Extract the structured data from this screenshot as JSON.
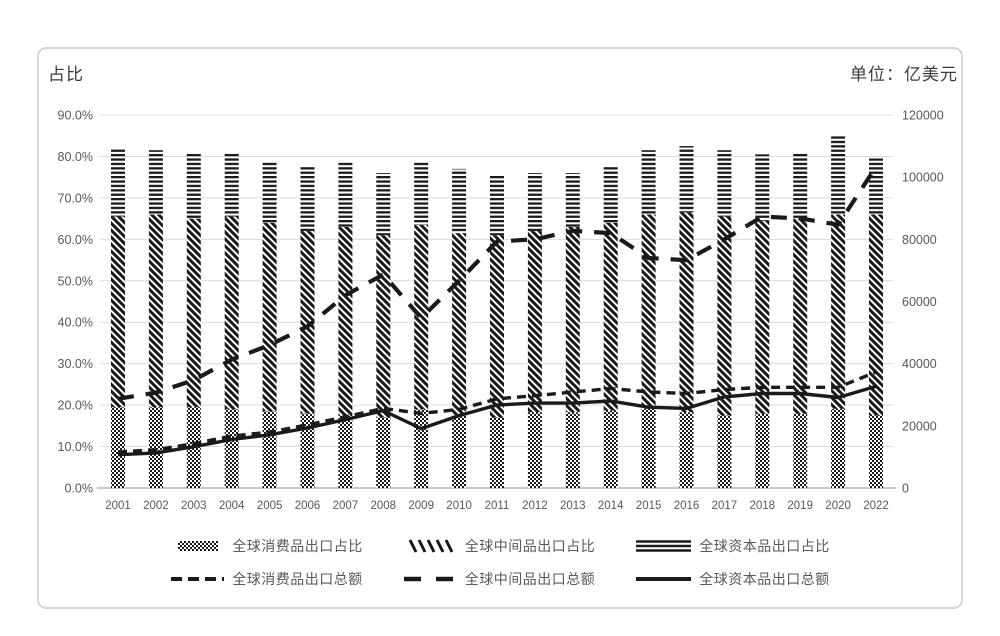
{
  "chart_data": {
    "type": "combo-stacked-bar-line",
    "left_axis": {
      "title": "占比",
      "unit": "%",
      "min": 0,
      "max": 90,
      "ticks": [
        "0.0%",
        "10.0%",
        "20.0%",
        "30.0%",
        "40.0%",
        "50.0%",
        "60.0%",
        "70.0%",
        "80.0%",
        "90.0%"
      ]
    },
    "right_axis": {
      "title": "单位：亿美元",
      "unit": "亿美元",
      "min": 0,
      "max": 120000,
      "ticks": [
        "0",
        "20000",
        "40000",
        "60000",
        "80000",
        "100000",
        "120000"
      ]
    },
    "categories": [
      "2001",
      "2002",
      "2003",
      "2004",
      "2005",
      "2006",
      "2007",
      "2008",
      "2009",
      "2010",
      "2011",
      "2012",
      "2013",
      "2014",
      "2015",
      "2016",
      "2017",
      "2018",
      "2019",
      "2020",
      "2022"
    ],
    "series_bars": [
      {
        "name": "全球消费品出口占比",
        "pattern": "crosshatch",
        "axis": "left",
        "unit": "%",
        "values": [
          19.5,
          19.5,
          19.5,
          19,
          18.5,
          18,
          17.5,
          17,
          19,
          17.5,
          17,
          18.3,
          18.3,
          18.7,
          19.1,
          18.3,
          17.5,
          17.9,
          17.9,
          19.1,
          17.5
        ]
      },
      {
        "name": "全球中间品出口占比",
        "pattern": "diagonal-stripes",
        "axis": "left",
        "unit": "%",
        "values": [
          46,
          46.5,
          45.5,
          46.5,
          45.5,
          44,
          45.5,
          44,
          44.5,
          44,
          44,
          43.7,
          44.7,
          45.3,
          46.9,
          48.2,
          48,
          46.6,
          47.1,
          46.9,
          48.5
        ]
      },
      {
        "name": "全球资本品出口占比",
        "pattern": "horizontal-stripes",
        "axis": "left",
        "unit": "%",
        "values": [
          16.5,
          15.5,
          16,
          15.5,
          14.5,
          15.5,
          15.5,
          15,
          15,
          15.5,
          14.5,
          14,
          13,
          13.5,
          15.5,
          16,
          16,
          16,
          16,
          19,
          13.5
        ]
      }
    ],
    "series_lines": [
      {
        "name": "全球消费品出口总额",
        "style": "dashed-short",
        "axis": "right",
        "unit": "亿美元",
        "values": [
          11600,
          12300,
          14300,
          16700,
          18000,
          20300,
          22900,
          25600,
          24000,
          25300,
          28700,
          29700,
          30900,
          32000,
          30900,
          30400,
          31700,
          32400,
          32400,
          32400,
          37300
        ]
      },
      {
        "name": "全球中间品出口总额",
        "style": "dashed-long",
        "axis": "right",
        "unit": "亿美元",
        "values": [
          28700,
          30700,
          34700,
          41300,
          46000,
          52000,
          62000,
          68700,
          54700,
          66700,
          79300,
          80000,
          82700,
          82000,
          74000,
          73300,
          80000,
          87300,
          86700,
          84700,
          103300
        ]
      },
      {
        "name": "全球资本品出口总额",
        "style": "solid",
        "axis": "right",
        "unit": "亿美元",
        "values": [
          10700,
          11300,
          13300,
          15600,
          17100,
          19300,
          22000,
          24900,
          19100,
          23300,
          26700,
          27300,
          27300,
          28000,
          26000,
          25600,
          29300,
          30400,
          30400,
          29100,
          32700
        ]
      }
    ],
    "legend_position": "bottom",
    "grid": true,
    "colors": {
      "ink": "#1a1a1a",
      "grid": "#dcdcdc",
      "axis_line": "#a6a6a6",
      "axis_text": "#595959",
      "card_border": "#c9c9c9"
    }
  }
}
